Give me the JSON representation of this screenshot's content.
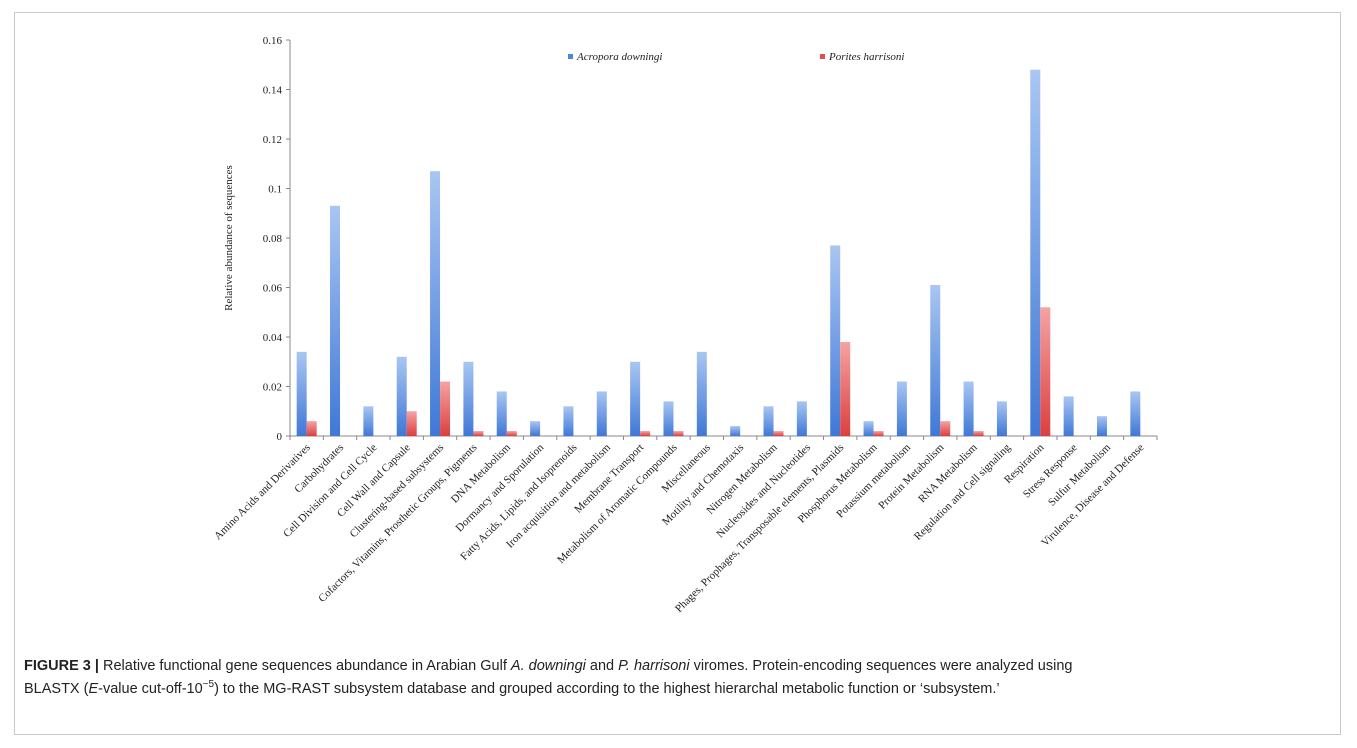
{
  "chart_data": {
    "type": "bar",
    "ylabel": "Relative abundance of sequences",
    "ylim": [
      0,
      0.16
    ],
    "yticks": [
      "0",
      "0.02",
      "0.04",
      "0.06",
      "0.08",
      "0.1",
      "0.12",
      "0.14",
      "0.16"
    ],
    "legend_position": "top",
    "categories": [
      "Amino Acids and Derivatives",
      "Carbohydrates",
      "Cell Division and Cell Cycle",
      "Cell Wall and Capsule",
      "Clustering-based subsystems",
      "Cofactors, Vitamins, Prosthetic Groups, Pigments",
      "DNA Metabolism",
      "Dormancy and Sporulation",
      "Fatty Acids, Lipids, and Isoprenoids",
      "Iron acquisition and metabolism",
      "Membrane Transport",
      "Metabolism of Aromatic Compounds",
      "Miscellaneous",
      "Motility and Chemotaxis",
      "Nitrogen Metabolism",
      "Nucleosides and Nucleotides",
      "Phages, Prophages, Transposable elements, Plasmids",
      "Phosphorus Metabolism",
      "Potassium metabolism",
      "Protein Metabolism",
      "RNA Metabolism",
      "Regulation and Cell signaling",
      "Respiration",
      "Stress Response",
      "Sulfur Metabolism",
      "Virulence, Disease and Defense"
    ],
    "series": [
      {
        "name": "Acropora downingi",
        "color": "#4f86dd",
        "values": [
          0.034,
          0.093,
          0.012,
          0.032,
          0.107,
          0.03,
          0.018,
          0.006,
          0.012,
          0.018,
          0.03,
          0.014,
          0.034,
          0.004,
          0.012,
          0.014,
          0.077,
          0.006,
          0.022,
          0.061,
          0.022,
          0.014,
          0.148,
          0.016,
          0.008,
          0.018
        ]
      },
      {
        "name": "Porites harrisoni",
        "color": "#e54c4c",
        "values": [
          0.006,
          0,
          0,
          0.01,
          0.022,
          0.002,
          0.002,
          0,
          0,
          0,
          0.002,
          0.002,
          0,
          0,
          0.002,
          0,
          0.038,
          0.002,
          0,
          0.006,
          0.002,
          0,
          0.052,
          0,
          0,
          0
        ]
      }
    ]
  },
  "caption": {
    "label": "FIGURE 3 |",
    "line1_a": " Relative functional gene sequences abundance in Arabian Gulf ",
    "line1_sp1": "A. downingi",
    "line1_b": " and ",
    "line1_sp2": "P. harrisoni",
    "line1_c": " viromes. Protein-encoding sequences were analyzed using",
    "line2_a": "BLASTX (",
    "line2_e": "E",
    "line2_b": "-value cut-off-10",
    "line2_exp": "−5",
    "line2_c": ") to the MG-RAST subsystem database and grouped according to the highest hierarchal metabolic function or ‘subsystem.’"
  }
}
